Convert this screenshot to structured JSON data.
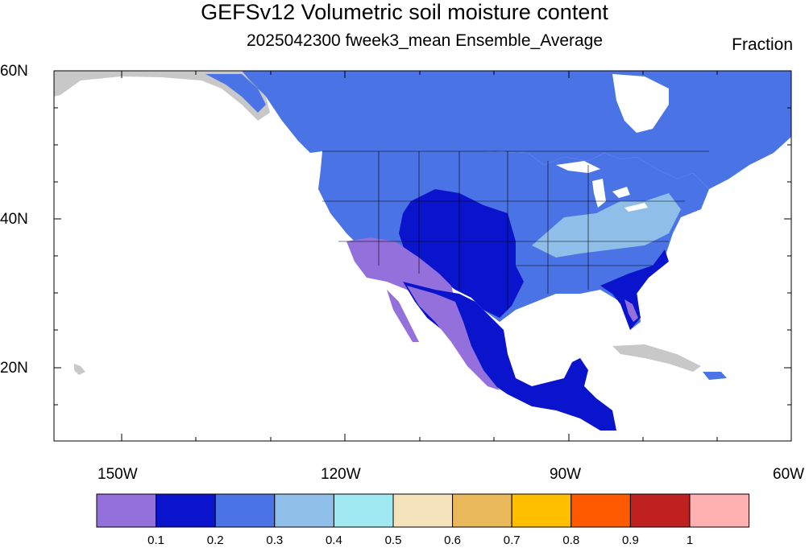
{
  "title": "GEFSv12 Volumetric soil moisture content",
  "subtitle": "2025042300 fweek3_mean Ensemble_Average",
  "units": "Fraction",
  "axes": {
    "lat_labels": [
      "60N",
      "40N",
      "20N"
    ],
    "lon_labels": [
      "150W",
      "120W",
      "90W",
      "60W"
    ]
  },
  "colorbar": {
    "colors": [
      "#9370db",
      "#0a14cc",
      "#4a73e6",
      "#8fbfe8",
      "#a0e8f2",
      "#f5e3bc",
      "#e8b85a",
      "#ffbf00",
      "#ff5a00",
      "#bf2020",
      "#ffb0b0"
    ],
    "labels": [
      "0.1",
      "0.2",
      "0.3",
      "0.4",
      "0.5",
      "0.6",
      "0.7",
      "0.8",
      "0.9",
      "1"
    ]
  },
  "map_colors": {
    "land_nodata": "#c8c8c8",
    "land_mid": "#4a73e6",
    "land_wet": "#0a14cc",
    "land_dry": "#9370db",
    "land_light": "#8fbfe8"
  }
}
